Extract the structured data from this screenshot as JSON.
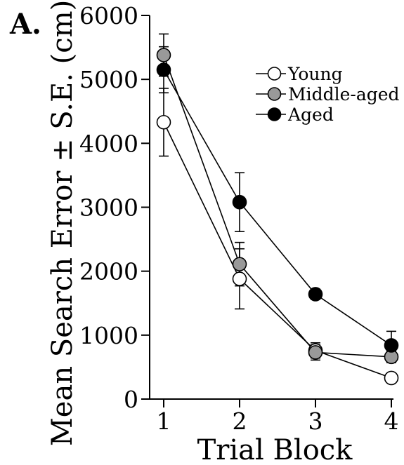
{
  "chart_data": {
    "type": "line",
    "panel_label": "A.",
    "title": "",
    "xlabel": "Trial Block",
    "ylabel": "Mean Search Error ± S.E. (cm)",
    "x": [
      1,
      2,
      3,
      4
    ],
    "x_tick_labels": [
      "1",
      "2",
      "3",
      "4"
    ],
    "xlim": [
      1,
      4
    ],
    "ylim": [
      0,
      6000
    ],
    "y_ticks": [
      0,
      1000,
      2000,
      3000,
      4000,
      5000,
      6000
    ],
    "y_tick_labels": [
      "0",
      "1000",
      "2000",
      "3000",
      "4000",
      "5000",
      "6000"
    ],
    "grid": false,
    "legend_position": "top-right",
    "series": [
      {
        "name": "Young",
        "marker": "open-circle",
        "color": "#ffffff",
        "values": [
          4330,
          1880,
          760,
          330
        ],
        "errors": [
          530,
          470,
          120,
          60
        ]
      },
      {
        "name": "Middle-aged",
        "marker": "gray-circle",
        "color": "#999999",
        "values": [
          5380,
          2110,
          730,
          660
        ],
        "errors": [
          330,
          340,
          120,
          90
        ]
      },
      {
        "name": "Aged",
        "marker": "filled-circle",
        "color": "#000000",
        "values": [
          5150,
          3080,
          1640,
          840
        ],
        "errors": [
          360,
          460,
          80,
          220
        ]
      }
    ]
  }
}
